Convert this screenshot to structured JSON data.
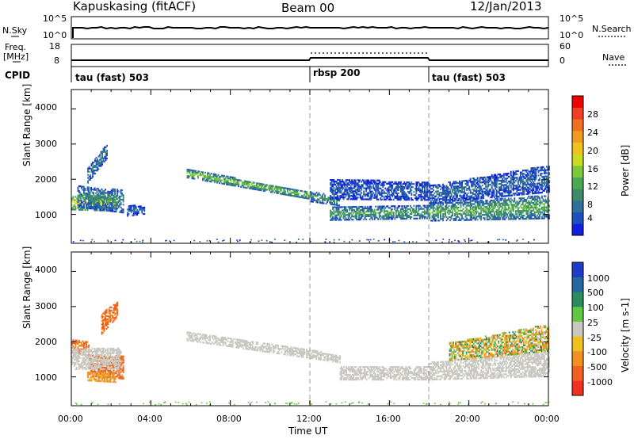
{
  "header": {
    "station": "Kapuskasing (fitACF)",
    "beam": "Beam 00",
    "date": "12/Jan/2013"
  },
  "sidebar_labels": {
    "nsky": "N.Sky",
    "freq": "Freq.",
    "mhz": "[MHz]",
    "cpid": "CPID",
    "nsearch": "N.Search",
    "nave": "Nave"
  },
  "noise_panel": {
    "left_ticks": [
      "10^5",
      "10^0"
    ],
    "right_ticks": [
      "10^5",
      "10^0"
    ]
  },
  "freq_panel": {
    "left_ticks": [
      "18",
      "8"
    ],
    "right_ticks": [
      "60",
      "0"
    ]
  },
  "cpid_segments": [
    {
      "label": "tau (fast) 503",
      "start_hour": 0
    },
    {
      "label": "rbsp 200",
      "start_hour": 12
    },
    {
      "label": "tau (fast) 503",
      "start_hour": 18
    }
  ],
  "colorbars": {
    "power": {
      "title": "Power [dB]",
      "ticks": [
        "28",
        "24",
        "20",
        "16",
        "12",
        "8",
        "4"
      ],
      "colors": [
        "#1020e0",
        "#2050c0",
        "#30709a",
        "#3c8c6a",
        "#4aa852",
        "#7cc83a",
        "#c8dc20",
        "#f0c020",
        "#f09a20",
        "#f07020",
        "#f04020",
        "#f00000"
      ]
    },
    "velocity": {
      "title": "Velocity [m s-1]",
      "ticks": [
        "1000",
        "500",
        "100",
        "25",
        "-25",
        "-100",
        "-500",
        "-1000"
      ],
      "colors": [
        "#1e3cc8",
        "#2468a0",
        "#2a8c5a",
        "#60c840",
        "#c8c8c0",
        "#f0c020",
        "#f09020",
        "#f06020",
        "#f03020"
      ]
    }
  },
  "axes": {
    "ylabel": "Slant Range [km]",
    "xlabel": "Time UT",
    "yticks": [
      "4000",
      "3000",
      "2000",
      "1000"
    ],
    "xticks": [
      "00:00",
      "04:00",
      "08:00",
      "12:00",
      "16:00",
      "20:00",
      "00:00"
    ]
  },
  "chart_data": {
    "type": "heatmap",
    "title": "Kapuskasing (fitACF)",
    "xlabel": "Time UT",
    "ylabel": "Slant Range [km]",
    "xlim_hours": [
      0,
      24
    ],
    "ylim_km": [
      180,
      4550
    ],
    "segment_boundaries_hours": [
      12,
      18
    ],
    "noise_sky_level": "10^5",
    "power_scale_db": [
      0,
      30
    ],
    "velocity_scale": [
      -1000,
      1000
    ],
    "power_bands": [
      {
        "t": [
          0,
          2.2
        ],
        "center": [
          1320,
          1300
        ],
        "halfwidth": [
          200,
          220
        ],
        "p": 18
      },
      {
        "t": [
          0.3,
          2.6
        ],
        "center": [
          1500,
          1350
        ],
        "halfwidth": [
          300,
          320
        ],
        "p": 9
      },
      {
        "t": [
          0.8,
          1.8
        ],
        "center": [
          2100,
          2800
        ],
        "halfwidth": [
          220,
          200
        ],
        "p": 8
      },
      {
        "t": [
          2.8,
          3.7
        ],
        "center": [
          1100,
          1100
        ],
        "halfwidth": [
          160,
          100
        ],
        "p": 6
      },
      {
        "t": [
          5.8,
          12.2
        ],
        "center": [
          2150,
          1500
        ],
        "halfwidth": [
          120,
          100
        ],
        "p": 14
      },
      {
        "t": [
          12.0,
          13.5
        ],
        "center": [
          1500,
          1350
        ],
        "halfwidth": [
          150,
          120
        ],
        "p": 10
      },
      {
        "t": [
          13.0,
          18.0
        ],
        "center": [
          1000,
          1050
        ],
        "halfwidth": [
          180,
          180
        ],
        "p": 11
      },
      {
        "t": [
          13.0,
          18.0
        ],
        "center": [
          1700,
          1650
        ],
        "halfwidth": [
          280,
          260
        ],
        "p": 5
      },
      {
        "t": [
          18.0,
          24.0
        ],
        "center": [
          1050,
          1200
        ],
        "halfwidth": [
          250,
          330
        ],
        "p": 12
      },
      {
        "t": [
          18.0,
          24.0
        ],
        "center": [
          1550,
          2000
        ],
        "halfwidth": [
          250,
          380
        ],
        "p": 6
      }
    ],
    "velocity_bands": [
      {
        "t": [
          0,
          0.9
        ],
        "center": [
          1850,
          1800
        ],
        "halfwidth": [
          180,
          200
        ],
        "v": -550
      },
      {
        "t": [
          0.9,
          2.6
        ],
        "center": [
          1300,
          1250
        ],
        "halfwidth": [
          300,
          320
        ],
        "v": -620
      },
      {
        "t": [
          0.8,
          2.2
        ],
        "center": [
          1000,
          950
        ],
        "halfwidth": [
          120,
          120
        ],
        "v": -250
      },
      {
        "t": [
          0,
          2.5
        ],
        "center": [
          1500,
          1500
        ],
        "halfwidth": [
          300,
          300
        ],
        "v": 0
      },
      {
        "t": [
          1.5,
          2.3
        ],
        "center": [
          2500,
          2900
        ],
        "halfwidth": [
          300,
          200
        ],
        "v": -600
      },
      {
        "t": [
          5.8,
          13.5
        ],
        "center": [
          2150,
          1500
        ],
        "halfwidth": [
          130,
          110
        ],
        "v": 0
      },
      {
        "t": [
          13.5,
          18.0
        ],
        "center": [
          1100,
          1100
        ],
        "halfwidth": [
          200,
          200
        ],
        "v": 0
      },
      {
        "t": [
          18.0,
          24.0
        ],
        "center": [
          1150,
          1350
        ],
        "halfwidth": [
          250,
          350
        ],
        "v": 0
      },
      {
        "t": [
          19.0,
          24.0
        ],
        "center": [
          1700,
          2100
        ],
        "halfwidth": [
          250,
          380
        ],
        "v": -60
      }
    ]
  }
}
